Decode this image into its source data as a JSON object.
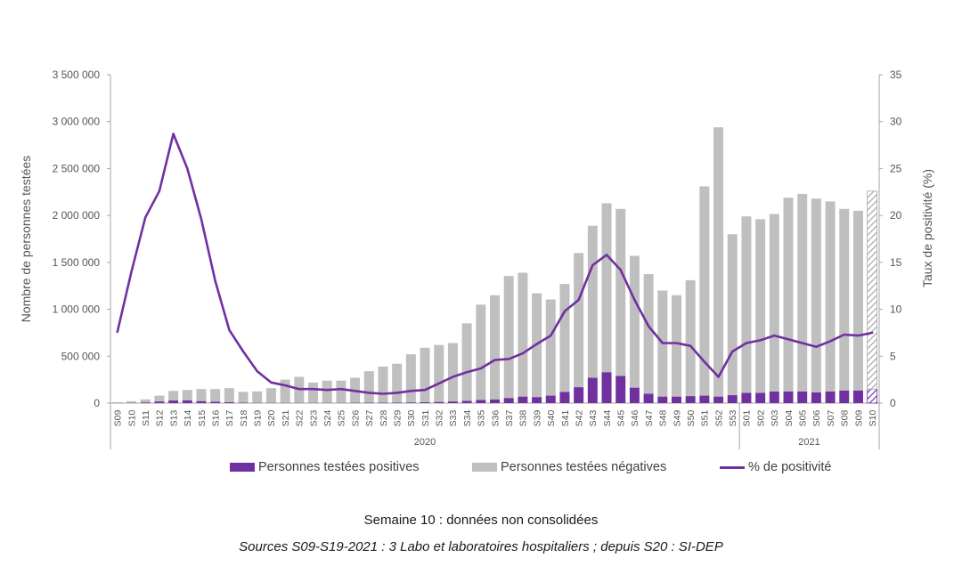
{
  "chart_data": {
    "type": "bar",
    "stacked": true,
    "categories": [
      "S09",
      "S10",
      "S11",
      "S12",
      "S13",
      "S14",
      "S15",
      "S16",
      "S17",
      "S18",
      "S19",
      "S20",
      "S21",
      "S22",
      "S23",
      "S24",
      "S25",
      "S26",
      "S27",
      "S28",
      "S29",
      "S30",
      "S31",
      "S32",
      "S33",
      "S34",
      "S35",
      "S36",
      "S37",
      "S38",
      "S39",
      "S40",
      "S41",
      "S42",
      "S43",
      "S44",
      "S45",
      "S46",
      "S47",
      "S48",
      "S49",
      "S50",
      "S51",
      "S52",
      "S53",
      "S01",
      "S02",
      "S03",
      "S04",
      "S05",
      "S06",
      "S07",
      "S08",
      "S09",
      "S10"
    ],
    "year_groups": [
      {
        "label": "2020",
        "start": 0,
        "end": 44
      },
      {
        "label": "2021",
        "start": 45,
        "end": 54
      }
    ],
    "series": [
      {
        "name": "Personnes testées positives",
        "color": "#7030a0",
        "values": [
          2000,
          3000,
          8000,
          18000,
          28000,
          30000,
          22000,
          15000,
          10000,
          5000,
          3000,
          3000,
          3000,
          3000,
          3000,
          3000,
          3000,
          4000,
          5000,
          6000,
          7000,
          8000,
          10000,
          13000,
          18000,
          25000,
          35000,
          40000,
          55000,
          70000,
          65000,
          80000,
          120000,
          170000,
          270000,
          330000,
          290000,
          165000,
          100000,
          70000,
          70000,
          75000,
          80000,
          70000,
          85000,
          110000,
          110000,
          125000,
          125000,
          125000,
          115000,
          125000,
          135000,
          135000,
          150000
        ]
      },
      {
        "name": "Personnes testées négatives",
        "color": "#bfbfbf",
        "values": [
          8000,
          17000,
          32000,
          62000,
          102000,
          110000,
          128000,
          135000,
          150000,
          115000,
          122000,
          157000,
          247000,
          277000,
          217000,
          237000,
          237000,
          266000,
          335000,
          384000,
          413000,
          512000,
          580000,
          607000,
          622000,
          825000,
          1015000,
          1110000,
          1300000,
          1320000,
          1105000,
          1025000,
          1150000,
          1430000,
          1620000,
          1800000,
          1780000,
          1405000,
          1275000,
          1130000,
          1080000,
          1235000,
          2230000,
          2870000,
          1715000,
          1880000,
          1850000,
          1890000,
          2065000,
          2105000,
          2065000,
          2025000,
          1935000,
          1915000,
          2110000
        ]
      },
      {
        "name": "% de positivité",
        "type": "line",
        "axis": "right",
        "color": "#7030a0",
        "values": [
          7.6,
          14.0,
          19.8,
          22.6,
          28.7,
          25.0,
          19.6,
          13.0,
          7.8,
          5.5,
          3.4,
          2.2,
          1.9,
          1.5,
          1.5,
          1.4,
          1.5,
          1.3,
          1.1,
          1.0,
          1.1,
          1.3,
          1.4,
          2.1,
          2.8,
          3.3,
          3.7,
          4.6,
          4.7,
          5.3,
          6.3,
          7.2,
          9.8,
          11.0,
          14.7,
          15.8,
          14.2,
          11.0,
          8.2,
          6.4,
          6.4,
          6.1,
          4.4,
          2.8,
          5.5,
          6.4,
          6.7,
          7.2,
          6.8,
          6.4,
          6.0,
          6.6,
          7.3,
          7.2,
          7.5
        ]
      }
    ],
    "hatched_category": "S10",
    "y_left": {
      "label": "Nombre de personnes testées",
      "min": 0,
      "max": 3500000,
      "ticks": [
        "0",
        "500 000",
        "1 000 000",
        "1 500 000",
        "2 000 000",
        "2 500 000",
        "3 000 000",
        "3 500 000"
      ]
    },
    "y_right": {
      "label": "Taux de positivité (%)",
      "min": 0,
      "max": 35,
      "ticks": [
        "0",
        "5",
        "10",
        "15",
        "20",
        "25",
        "30",
        "35"
      ]
    },
    "grid": false,
    "legend_position": "bottom"
  },
  "legend": [
    {
      "label": "Personnes testées positives"
    },
    {
      "label": "Personnes testées négatives"
    },
    {
      "label": "% de positivité"
    }
  ],
  "notes": {
    "line1": "Semaine 10 : données non consolidées",
    "line2": "Sources S09-S19-2021 : 3 Labo et laboratoires hospitaliers ; depuis S20 : SI-DEP"
  }
}
